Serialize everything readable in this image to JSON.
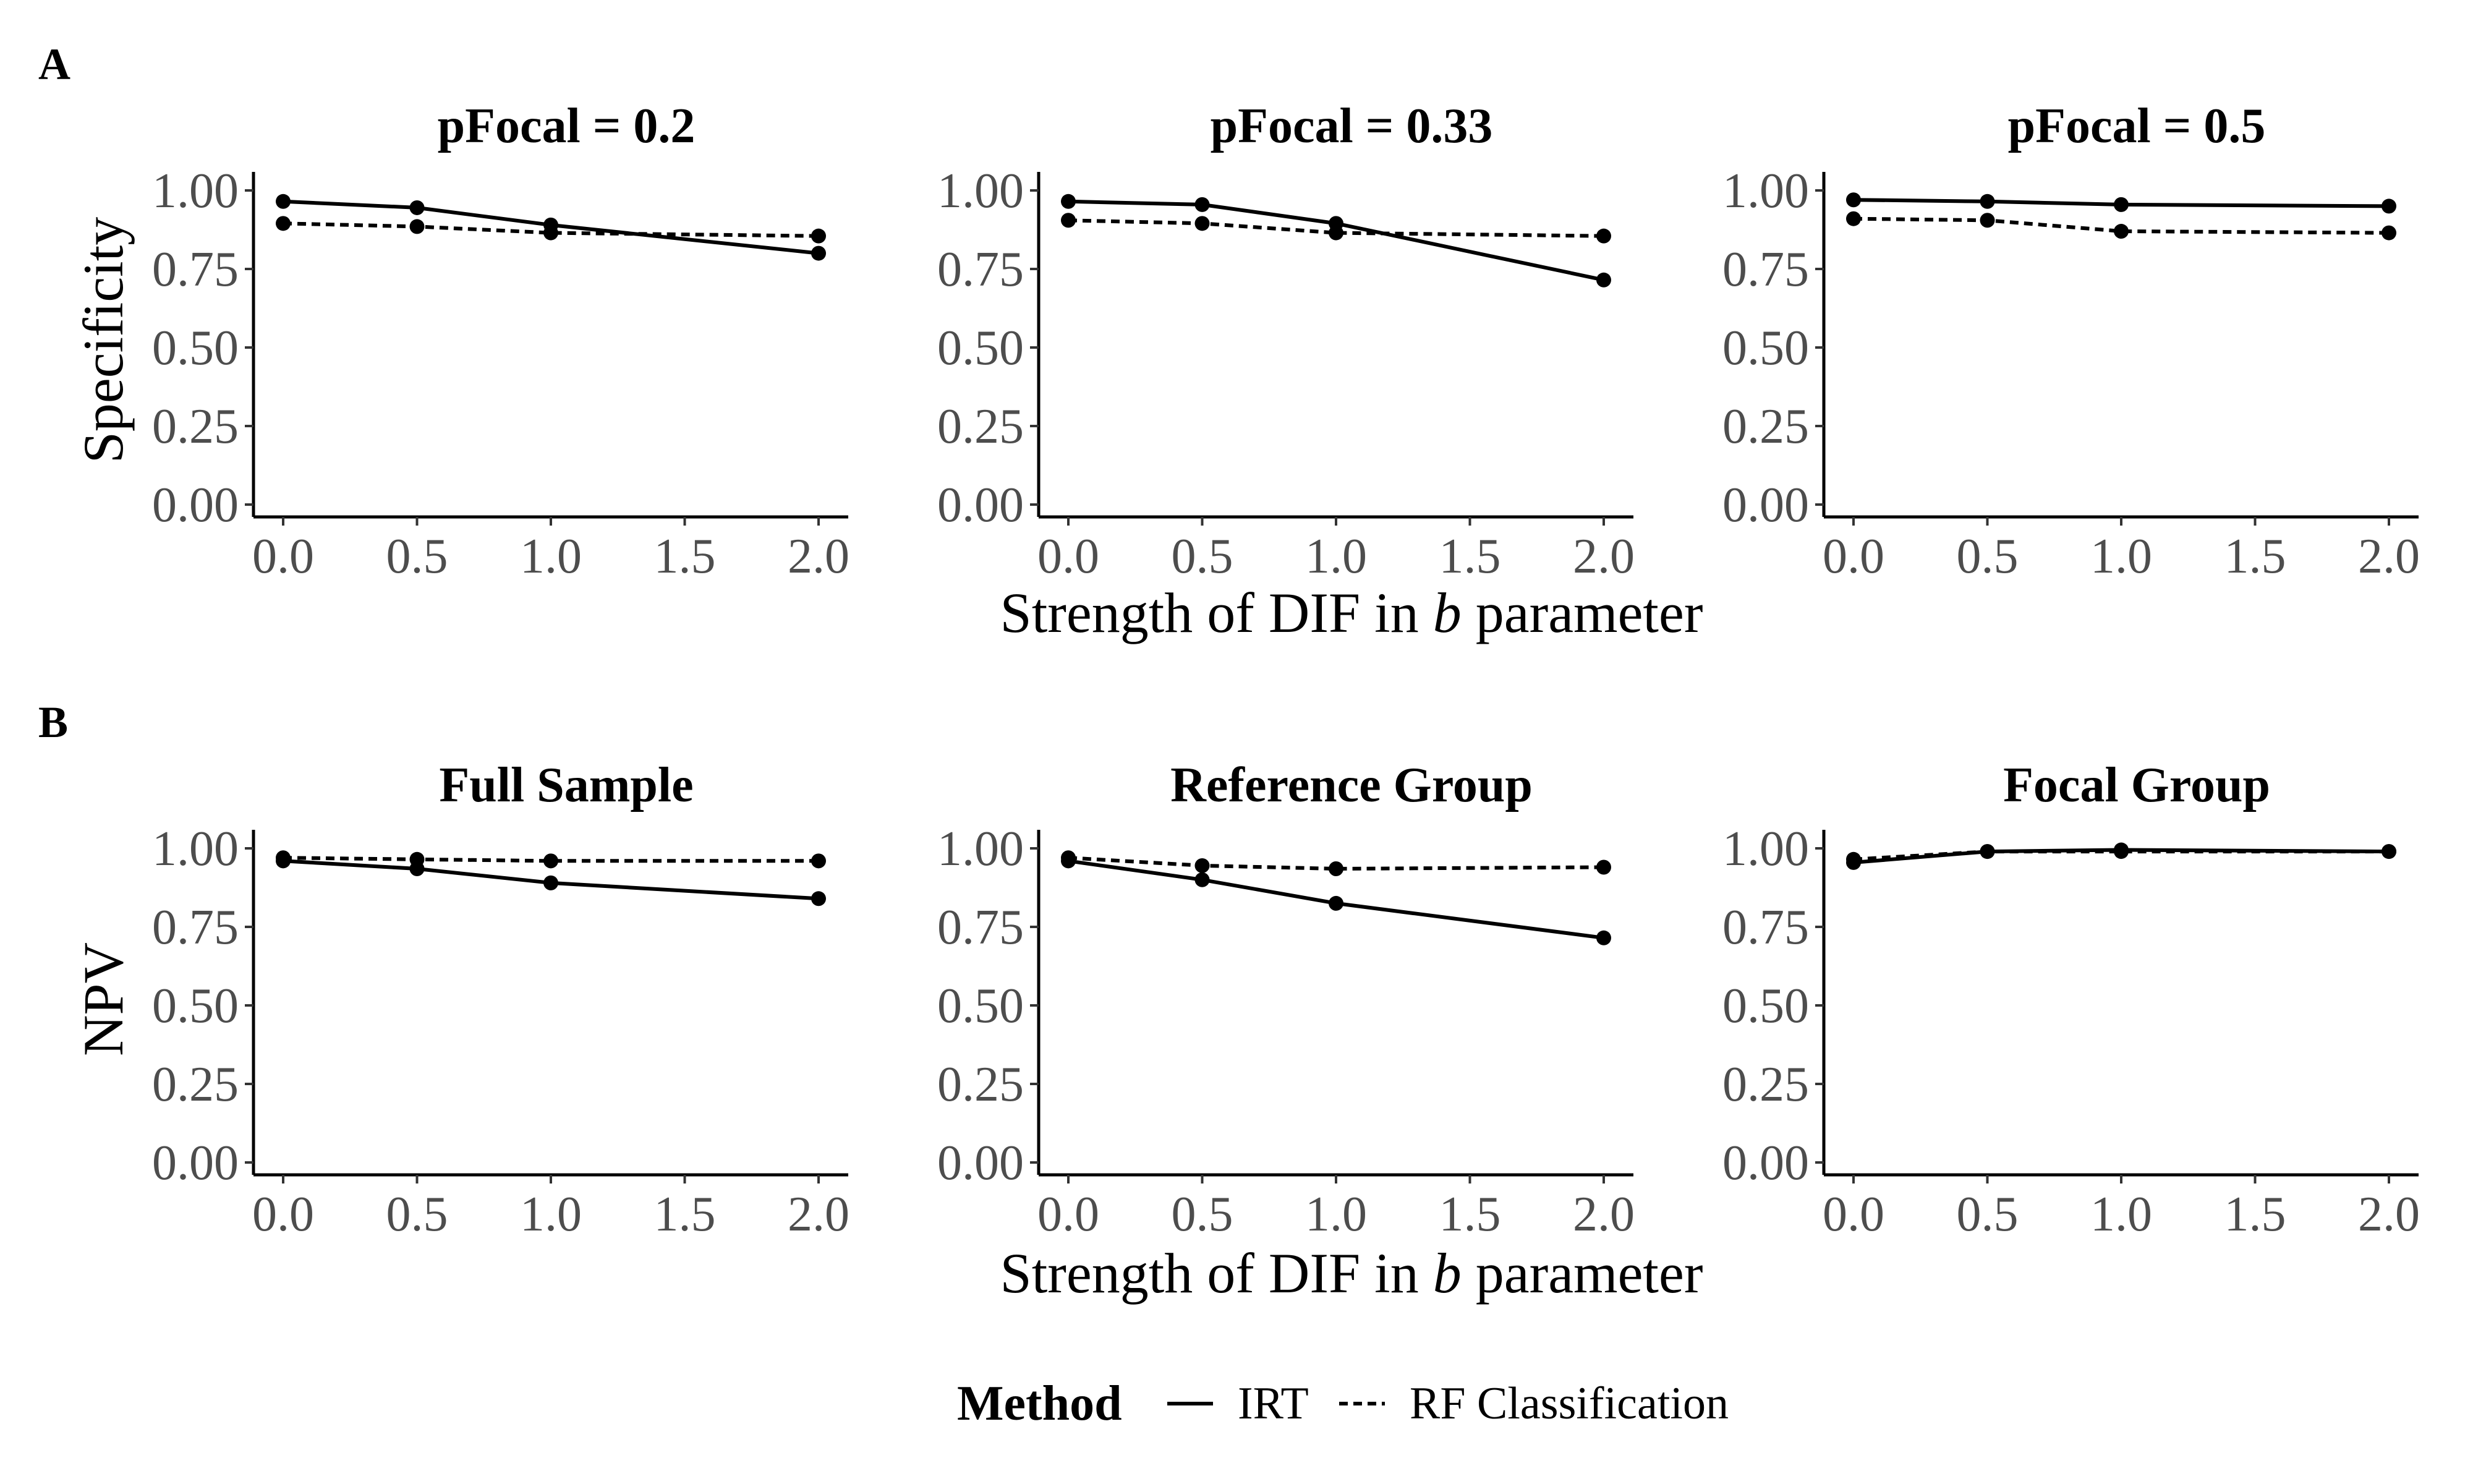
{
  "colors": {
    "line": "#000000",
    "tick_text": "#4d4d4d",
    "background": "#ffffff"
  },
  "chart_data": [
    {
      "type": "line",
      "tag": "A",
      "ylabel": "Specificity",
      "xlabel_prefix": "Strength of DIF in",
      "xlabel_var": "b",
      "xlabel_suffix": "parameter",
      "xlim": [
        0,
        2
      ],
      "ylim": [
        0,
        1
      ],
      "xticks": [
        "0.0",
        "0.5",
        "1.0",
        "1.5",
        "2.0"
      ],
      "yticks": [
        "0.00",
        "0.25",
        "0.50",
        "0.75",
        "1.00"
      ],
      "panels": [
        {
          "title": "pFocal = 0.2",
          "x": [
            0,
            0.5,
            1,
            2
          ],
          "series": [
            {
              "name": "IRT",
              "values": [
                0.965,
                0.945,
                0.89,
                0.8
              ]
            },
            {
              "name": "RF Classification",
              "values": [
                0.895,
                0.885,
                0.865,
                0.855
              ]
            }
          ]
        },
        {
          "title": "pFocal = 0.33",
          "x": [
            0,
            0.5,
            1,
            2
          ],
          "series": [
            {
              "name": "IRT",
              "values": [
                0.965,
                0.955,
                0.895,
                0.715
              ]
            },
            {
              "name": "RF Classification",
              "values": [
                0.905,
                0.895,
                0.865,
                0.855
              ]
            }
          ]
        },
        {
          "title": "pFocal = 0.5",
          "x": [
            0,
            0.5,
            1,
            2
          ],
          "series": [
            {
              "name": "IRT",
              "values": [
                0.97,
                0.965,
                0.955,
                0.95
              ]
            },
            {
              "name": "RF Classification",
              "values": [
                0.91,
                0.905,
                0.87,
                0.865
              ]
            }
          ]
        }
      ]
    },
    {
      "type": "line",
      "tag": "B",
      "ylabel": "NPV",
      "xlabel_prefix": "Strength of DIF in",
      "xlabel_var": "b",
      "xlabel_suffix": "parameter",
      "xlim": [
        0,
        2
      ],
      "ylim": [
        0,
        1
      ],
      "xticks": [
        "0.0",
        "0.5",
        "1.0",
        "1.5",
        "2.0"
      ],
      "yticks": [
        "0.00",
        "0.25",
        "0.50",
        "0.75",
        "1.00"
      ],
      "panels": [
        {
          "title": "Full Sample",
          "x": [
            0,
            0.5,
            1,
            2
          ],
          "series": [
            {
              "name": "IRT",
              "values": [
                0.96,
                0.935,
                0.89,
                0.84
              ]
            },
            {
              "name": "RF Classification",
              "values": [
                0.97,
                0.965,
                0.96,
                0.96
              ]
            }
          ]
        },
        {
          "title": "Reference Group",
          "x": [
            0,
            0.5,
            1,
            2
          ],
          "series": [
            {
              "name": "IRT",
              "values": [
                0.96,
                0.9,
                0.825,
                0.715
              ]
            },
            {
              "name": "RF Classification",
              "values": [
                0.97,
                0.945,
                0.935,
                0.94
              ]
            }
          ]
        },
        {
          "title": "Focal Group",
          "x": [
            0,
            0.5,
            1,
            2
          ],
          "series": [
            {
              "name": "IRT",
              "values": [
                0.955,
                0.99,
                0.995,
                0.99
              ]
            },
            {
              "name": "RF Classification",
              "values": [
                0.965,
                0.99,
                0.99,
                0.99
              ]
            }
          ]
        }
      ]
    }
  ],
  "legend": {
    "title": "Method",
    "items": [
      {
        "label": "IRT",
        "style": "solid"
      },
      {
        "label": "RF Classification",
        "style": "dashed"
      }
    ]
  }
}
